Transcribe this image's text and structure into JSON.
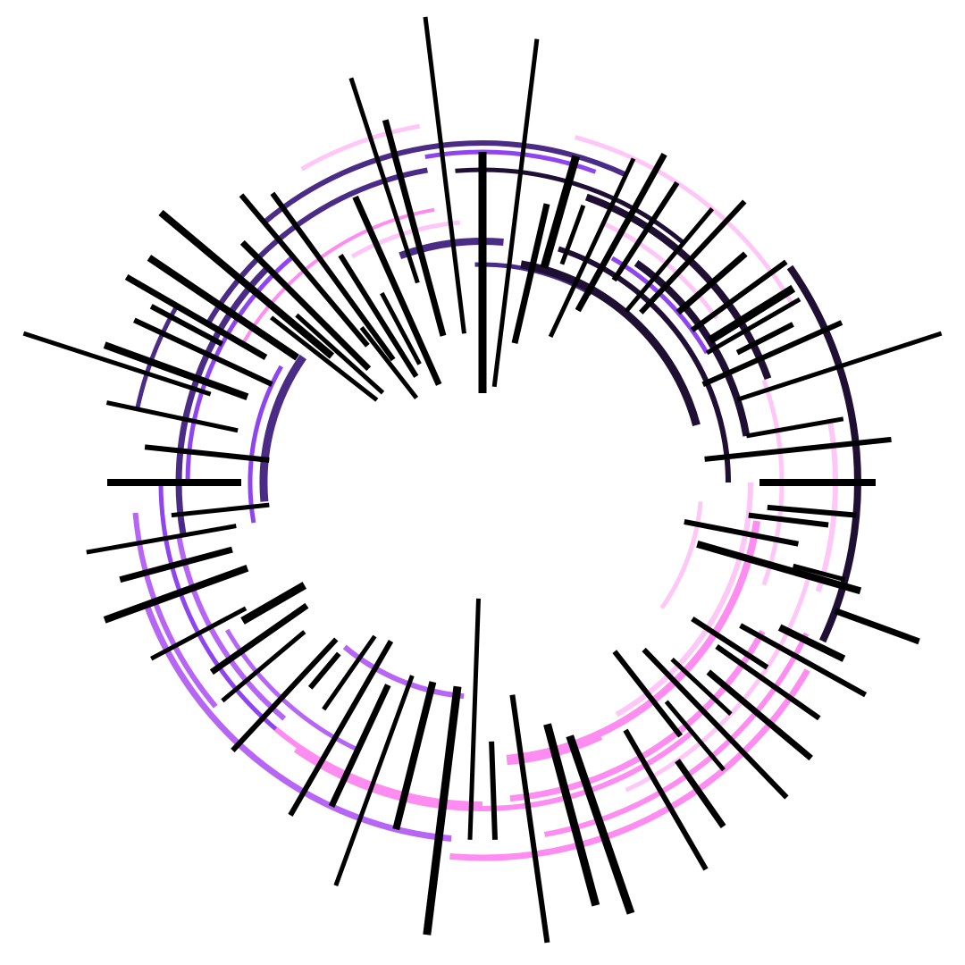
{
  "palette": {
    "background": "#ffffff",
    "stroke": "#000000",
    "arc_gradient": [
      "#8e45f0",
      "#4a2c86",
      "#1e0f33",
      "#ffc7f7",
      "#ff8cf0",
      "#b665f5"
    ]
  }
}
